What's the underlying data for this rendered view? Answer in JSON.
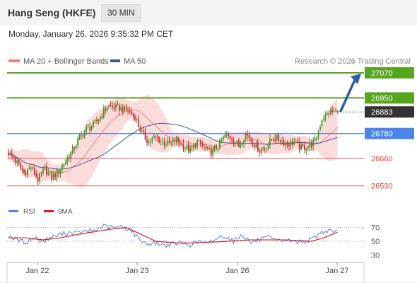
{
  "header": {
    "title": "Hang Seng (HKFE)",
    "timeframe": "30 MIN",
    "datetime": "Monday, January 26, 2026 9:35:32 PM CET"
  },
  "colors": {
    "bollinger_band": "#fbd5d5",
    "ma20": "#f08080",
    "ma50": "#3a5a9a",
    "resistance": "#55a61e",
    "support": "#f08080",
    "pivot": "#4a86e8",
    "last_price": "#333333",
    "rsi": "#5b7fd6",
    "rsi_ma": "#e11d1d",
    "candle_up": "#3f9a1e",
    "candle_down": "#d42f2f",
    "arrow": "#2b5ea8"
  },
  "chart_data": [
    {
      "type": "candlestick",
      "legend": [
        {
          "name": "MA 20 + Bollinger Bands",
          "color": "#f08080"
        },
        {
          "name": "MA 50",
          "color": "#3a5a9a"
        }
      ],
      "legend_position": "top-left",
      "copyright": "Research © 2026 Trading Central",
      "ylim": [
        26505,
        27080
      ],
      "x_ticks": [
        "Jan 22",
        "Jan 23",
        "Jan 26",
        "Jan 27"
      ],
      "levels": [
        {
          "value": 27070,
          "label": "27070",
          "kind": "resistance"
        },
        {
          "value": 26950,
          "label": "26950",
          "kind": "resistance"
        },
        {
          "value": 26883,
          "label": "26883",
          "kind": "last"
        },
        {
          "value": 26780,
          "label": "26780",
          "kind": "pivot"
        },
        {
          "value": 26660,
          "label": "26660",
          "kind": "support"
        },
        {
          "value": 26530,
          "label": "26530",
          "kind": "support"
        }
      ],
      "forecast_target": 27070,
      "close_keyframes": [
        [
          0,
          26690
        ],
        [
          5,
          26640
        ],
        [
          9,
          26590
        ],
        [
          13,
          26620
        ],
        [
          17,
          26560
        ],
        [
          21,
          26610
        ],
        [
          25,
          26570
        ],
        [
          29,
          26600
        ],
        [
          33,
          26650
        ],
        [
          37,
          26700
        ],
        [
          41,
          26760
        ],
        [
          45,
          26800
        ],
        [
          49,
          26820
        ],
        [
          53,
          26860
        ],
        [
          57,
          26910
        ],
        [
          61,
          26905
        ],
        [
          65,
          26900
        ],
        [
          69,
          26890
        ],
        [
          73,
          26860
        ],
        [
          77,
          26780
        ],
        [
          81,
          26740
        ],
        [
          85,
          26760
        ],
        [
          89,
          26740
        ],
        [
          93,
          26730
        ],
        [
          97,
          26750
        ],
        [
          101,
          26720
        ],
        [
          105,
          26700
        ],
        [
          109,
          26740
        ],
        [
          113,
          26710
        ],
        [
          117,
          26690
        ],
        [
          121,
          26720
        ],
        [
          125,
          26770
        ],
        [
          129,
          26760
        ],
        [
          133,
          26720
        ],
        [
          137,
          26780
        ],
        [
          141,
          26740
        ],
        [
          145,
          26700
        ],
        [
          149,
          26720
        ],
        [
          153,
          26760
        ],
        [
          157,
          26750
        ],
        [
          161,
          26730
        ],
        [
          165,
          26740
        ],
        [
          169,
          26710
        ],
        [
          173,
          26720
        ],
        [
          177,
          26740
        ],
        [
          181,
          26850
        ],
        [
          185,
          26880
        ],
        [
          189,
          26885
        ],
        [
          190,
          26883
        ]
      ]
    },
    {
      "type": "line",
      "legend": [
        {
          "name": "RSI",
          "color": "#5b7fd6"
        },
        {
          "name": "9MA",
          "color": "#e11d1d"
        }
      ],
      "ylim": [
        20,
        80
      ],
      "y_ticks": [
        70,
        50,
        30
      ],
      "rsi_keyframes": [
        [
          0,
          58
        ],
        [
          5,
          52
        ],
        [
          10,
          48
        ],
        [
          15,
          55
        ],
        [
          20,
          50
        ],
        [
          25,
          56
        ],
        [
          30,
          60
        ],
        [
          35,
          63
        ],
        [
          40,
          62
        ],
        [
          45,
          64
        ],
        [
          50,
          66
        ],
        [
          55,
          72
        ],
        [
          60,
          70
        ],
        [
          65,
          71
        ],
        [
          70,
          68
        ],
        [
          75,
          54
        ],
        [
          80,
          46
        ],
        [
          85,
          48
        ],
        [
          90,
          44
        ],
        [
          95,
          46
        ],
        [
          100,
          48
        ],
        [
          105,
          45
        ],
        [
          110,
          50
        ],
        [
          115,
          46
        ],
        [
          120,
          54
        ],
        [
          125,
          58
        ],
        [
          130,
          50
        ],
        [
          135,
          60
        ],
        [
          140,
          48
        ],
        [
          145,
          52
        ],
        [
          150,
          55
        ],
        [
          155,
          50
        ],
        [
          160,
          52
        ],
        [
          165,
          49
        ],
        [
          170,
          50
        ],
        [
          175,
          52
        ],
        [
          180,
          62
        ],
        [
          185,
          66
        ],
        [
          190,
          64
        ]
      ],
      "rsi_ma_keyframes": [
        [
          0,
          55
        ],
        [
          10,
          55
        ],
        [
          20,
          52
        ],
        [
          30,
          55
        ],
        [
          40,
          60
        ],
        [
          50,
          64
        ],
        [
          60,
          68
        ],
        [
          68,
          70
        ],
        [
          75,
          62
        ],
        [
          85,
          50
        ],
        [
          100,
          47
        ],
        [
          120,
          49
        ],
        [
          140,
          52
        ],
        [
          160,
          52
        ],
        [
          175,
          50
        ],
        [
          182,
          55
        ],
        [
          190,
          63
        ]
      ]
    }
  ]
}
